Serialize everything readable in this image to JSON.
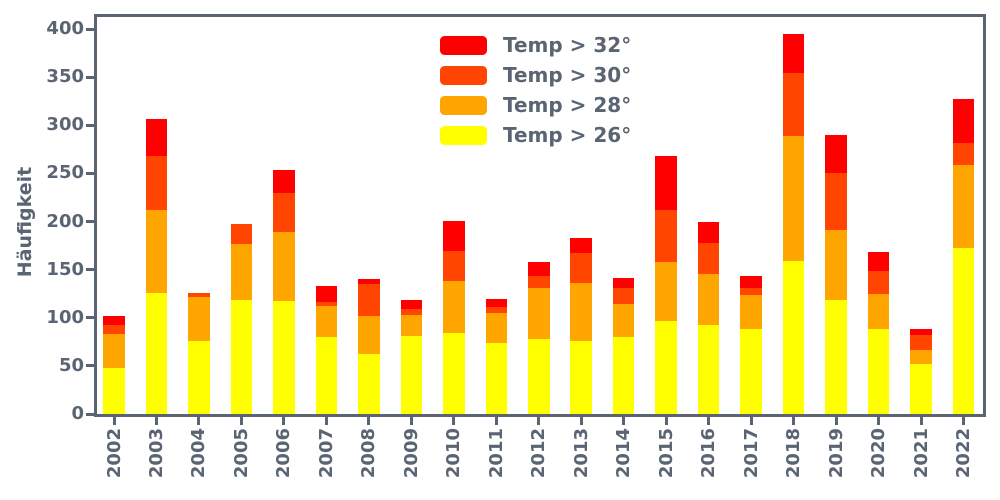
{
  "chart_data": {
    "type": "bar",
    "stacked": true,
    "title": "",
    "ylabel": "Häufigkeit",
    "xlabel": "",
    "grid": false,
    "background": "#ffffff",
    "axis_color": "#5a6472",
    "categories": [
      "2002",
      "2003",
      "2004",
      "2005",
      "2006",
      "2007",
      "2008",
      "2009",
      "2010",
      "2011",
      "2012",
      "2013",
      "2014",
      "2015",
      "2016",
      "2017",
      "2018",
      "2019",
      "2020",
      "2021",
      "2022"
    ],
    "series": [
      {
        "name": "Temp > 32°",
        "color": "#ff0000",
        "values": [
          10,
          38,
          0,
          0,
          24,
          17,
          5,
          9,
          32,
          8,
          15,
          16,
          10,
          56,
          22,
          12,
          41,
          40,
          19,
          6,
          45
        ]
      },
      {
        "name": "Temp > 30°",
        "color": "#ff4500",
        "values": [
          9,
          56,
          4,
          20,
          41,
          4,
          33,
          6,
          31,
          6,
          12,
          31,
          17,
          54,
          33,
          7,
          65,
          59,
          24,
          15,
          23
        ]
      },
      {
        "name": "Temp > 28°",
        "color": "#ffa500",
        "values": [
          35,
          86,
          46,
          59,
          72,
          32,
          40,
          22,
          54,
          31,
          53,
          60,
          34,
          61,
          53,
          36,
          130,
          73,
          37,
          15,
          87
        ]
      },
      {
        "name": "Temp > 26°",
        "color": "#ffff00",
        "values": [
          48,
          126,
          76,
          118,
          117,
          80,
          62,
          81,
          84,
          74,
          78,
          76,
          80,
          97,
          92,
          88,
          159,
          118,
          88,
          52,
          172
        ]
      }
    ],
    "stack_order_bottom_to_top": [
      "Temp > 26°",
      "Temp > 28°",
      "Temp > 30°",
      "Temp > 32°"
    ],
    "totals": [
      102,
      306,
      126,
      197,
      254,
      133,
      140,
      118,
      201,
      119,
      158,
      183,
      141,
      268,
      200,
      143,
      395,
      290,
      168,
      88,
      327
    ],
    "yticks": [
      0,
      50,
      100,
      150,
      200,
      250,
      300,
      350,
      400
    ],
    "ylim": [
      0,
      414
    ],
    "legend_position": "upper center inside plot, no frame"
  }
}
